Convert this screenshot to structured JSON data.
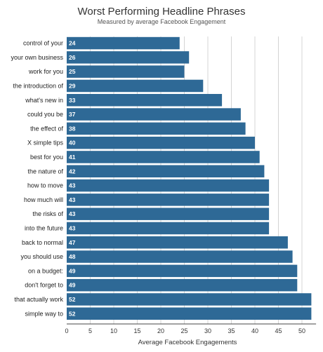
{
  "chart_data": {
    "type": "bar",
    "orientation": "horizontal",
    "title": "Worst Performing Headline Phrases",
    "subtitle": "Measured by average Facebook Engagement",
    "xlabel": "Average Facebook Engagements",
    "ylabel": "",
    "xlim": [
      0,
      53
    ],
    "xticks": [
      0,
      5,
      10,
      15,
      20,
      25,
      30,
      35,
      40,
      45,
      50
    ],
    "grid": true,
    "bar_color": "#2e6996",
    "categories": [
      "control of your",
      "your own business",
      "work for you",
      "the introduction of",
      "what's new in",
      "could you be",
      "the effect of",
      "X simple tips",
      "best for you",
      "the nature of",
      "how to move",
      "how much will",
      "the risks of",
      "into the future",
      "back to normal",
      "you should use",
      "on a budget:",
      "don't forget to",
      "that actually work",
      "simple way to"
    ],
    "values": [
      24,
      26,
      25,
      29,
      33,
      37,
      38,
      40,
      41,
      42,
      43,
      43,
      43,
      43,
      47,
      48,
      49,
      49,
      52,
      52
    ],
    "data_labels": [
      "24",
      "26",
      "25",
      "29",
      "33",
      "37",
      "38",
      "40",
      "41",
      "42",
      "43",
      "43",
      "43",
      "43",
      "47",
      "48",
      "49",
      "49",
      "52",
      "52"
    ]
  }
}
